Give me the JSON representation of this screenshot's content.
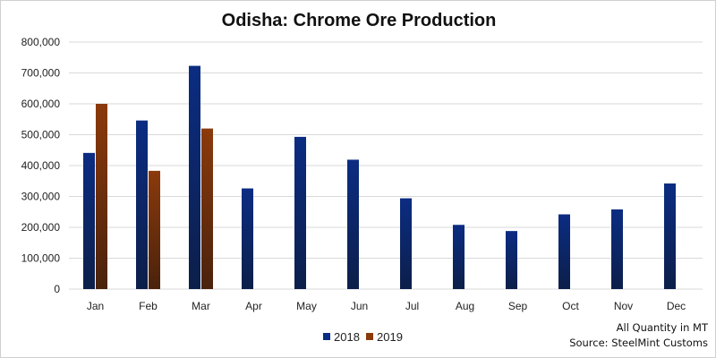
{
  "chart_data": {
    "type": "bar",
    "title": "Odisha: Chrome Ore Production",
    "xlabel": "",
    "ylabel": "",
    "ylim": [
      0,
      800000
    ],
    "yticks": [
      0,
      100000,
      200000,
      300000,
      400000,
      500000,
      600000,
      700000,
      800000
    ],
    "ytick_labels": [
      "0",
      "100,000",
      "200,000",
      "300,000",
      "400,000",
      "500,000",
      "600,000",
      "700,000",
      "800,000"
    ],
    "categories": [
      "Jan",
      "Feb",
      "Mar",
      "Apr",
      "May",
      "Jun",
      "Jul",
      "Aug",
      "Sep",
      "Oct",
      "Nov",
      "Dec"
    ],
    "series": [
      {
        "name": "2018",
        "color": "#0b2c82",
        "values": [
          441000,
          546000,
          723000,
          326000,
          493000,
          419000,
          294000,
          208000,
          188000,
          242000,
          258000,
          342000
        ]
      },
      {
        "name": "2019",
        "color": "#8b3a0c",
        "values": [
          600000,
          383000,
          520000,
          null,
          null,
          null,
          null,
          null,
          null,
          null,
          null,
          null
        ]
      }
    ],
    "grid": true,
    "legend_position": "bottom-center"
  },
  "notes": {
    "quantity": "All Quantity in MT",
    "source": "Source: SteelMint Customs"
  }
}
